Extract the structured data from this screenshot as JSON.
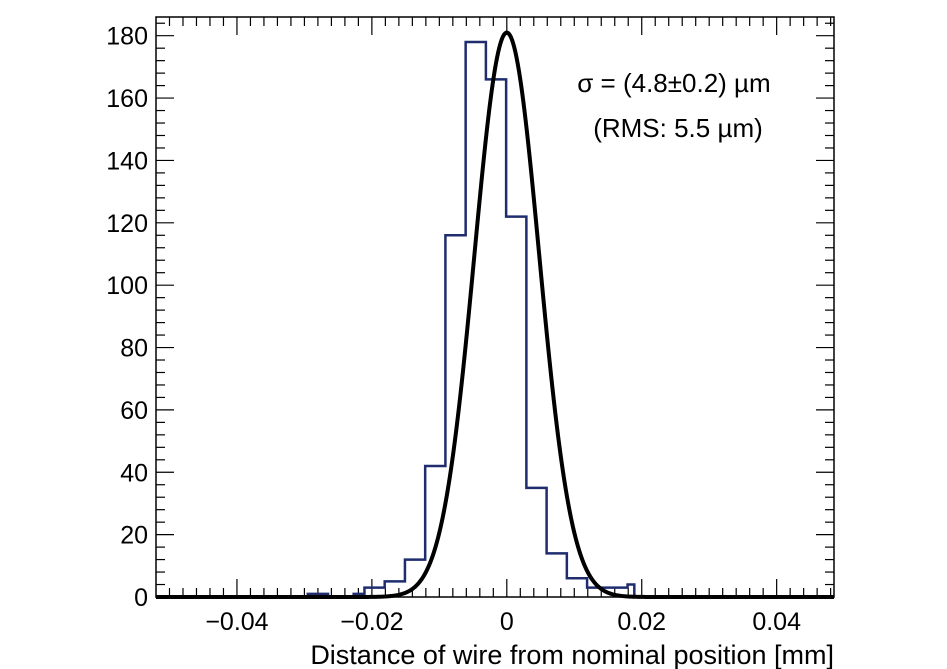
{
  "chart_data": {
    "type": "histogram",
    "xlabel": "Distance of wire from nominal position [mm]",
    "ylabel": "",
    "xlim": [
      -0.052,
      0.0485
    ],
    "ylim": [
      0,
      186
    ],
    "x_ticks": [
      -0.04,
      -0.02,
      0,
      0.02,
      0.04
    ],
    "x_tick_labels": [
      "−0.04",
      "−0.02",
      "0",
      "0.02",
      "0.04"
    ],
    "y_ticks": [
      0,
      20,
      40,
      60,
      80,
      100,
      120,
      140,
      160,
      180
    ],
    "y_tick_labels": [
      "0",
      "20",
      "40",
      "60",
      "80",
      "100",
      "120",
      "140",
      "160",
      "180"
    ],
    "bin_edges": [
      -0.052,
      -0.0295,
      -0.0265,
      -0.0227,
      -0.0211,
      -0.0181,
      -0.0151,
      -0.0121,
      -0.0091,
      -0.0061,
      -0.0031,
      -0.0001,
      0.0029,
      0.0059,
      0.0089,
      0.0119,
      0.0149,
      0.0179,
      0.0189,
      0.0209,
      0.0485
    ],
    "counts": [
      0,
      1,
      0,
      1,
      3,
      5,
      12,
      42,
      116,
      178,
      166,
      122,
      35,
      14,
      6,
      3,
      3,
      4,
      0,
      0
    ],
    "histogram_color": "#1f2d6e",
    "fit": {
      "type": "gaussian",
      "amplitude": 181,
      "mean": 0.0,
      "sigma_mm": 0.0048,
      "color": "#000000"
    },
    "annotations": [
      "σ = (4.8±0.2) µm",
      "(RMS: 5.5 µm)"
    ],
    "grid": false,
    "legend": "none"
  }
}
